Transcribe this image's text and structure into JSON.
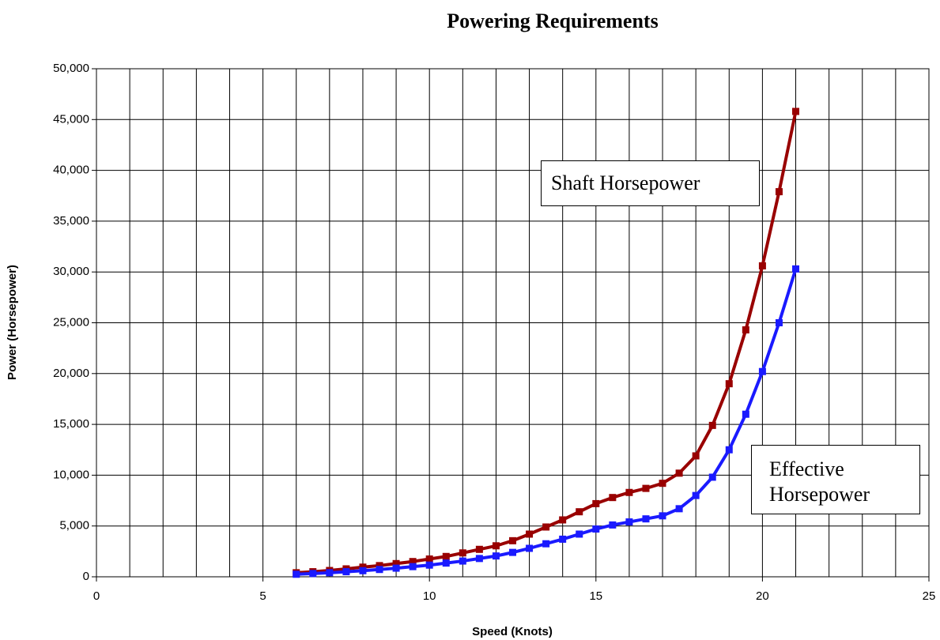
{
  "chart_data": {
    "type": "line",
    "title": "Powering Requirements",
    "xlabel": "Speed (Knots)",
    "ylabel": "Power (Horsepower)",
    "x": [
      6,
      6.5,
      7,
      7.5,
      8,
      8.5,
      9,
      9.5,
      10,
      10.5,
      11,
      11.5,
      12,
      12.5,
      13,
      13.5,
      14,
      14.5,
      15,
      15.5,
      16,
      16.5,
      17,
      17.5,
      18,
      18.5,
      19,
      19.5,
      20,
      20.5,
      21
    ],
    "series": [
      {
        "name": "Shaft Horsepower",
        "color": "#990000",
        "values": [
          400,
          500,
          620,
          780,
          950,
          1100,
          1300,
          1500,
          1750,
          2000,
          2350,
          2700,
          3050,
          3550,
          4200,
          4900,
          5600,
          6400,
          7200,
          7800,
          8300,
          8700,
          9200,
          10200,
          11900,
          14900,
          19000,
          24300,
          30600,
          37900,
          45800
        ]
      },
      {
        "name": "Effective Horsepower",
        "color": "#1a1aff",
        "values": [
          250,
          320,
          400,
          500,
          600,
          720,
          850,
          1000,
          1150,
          1350,
          1550,
          1800,
          2050,
          2400,
          2800,
          3250,
          3700,
          4200,
          4700,
          5100,
          5400,
          5700,
          6000,
          6700,
          8000,
          9800,
          12500,
          16000,
          20200,
          25000,
          30300
        ]
      }
    ],
    "annotations": [
      "Shaft Horsepower",
      "Effective Horsepower"
    ],
    "xlim": [
      0,
      25
    ],
    "xticks": [
      0,
      5,
      10,
      15,
      20,
      25
    ],
    "xgrid": [
      0,
      1,
      2,
      3,
      4,
      5,
      6,
      7,
      8,
      9,
      10,
      11,
      12,
      13,
      14,
      15,
      16,
      17,
      18,
      19,
      20,
      21,
      22,
      23,
      24,
      25
    ],
    "ylim": [
      0,
      50000
    ],
    "yticks": [
      0,
      {
        "value": 5000,
        "label": "5,000"
      },
      {
        "value": 10000,
        "label": "10,000"
      },
      {
        "value": 15000,
        "label": "15,000"
      },
      {
        "value": 20000,
        "label": "20,000"
      },
      {
        "value": 25000,
        "label": "25,000"
      },
      {
        "value": 30000,
        "label": "30,000"
      },
      {
        "value": 35000,
        "label": "35,000"
      },
      {
        "value": 40000,
        "label": "40,000"
      },
      {
        "value": 45000,
        "label": "45,000"
      },
      {
        "value": 50000,
        "label": "50,000"
      }
    ],
    "grid": true
  }
}
